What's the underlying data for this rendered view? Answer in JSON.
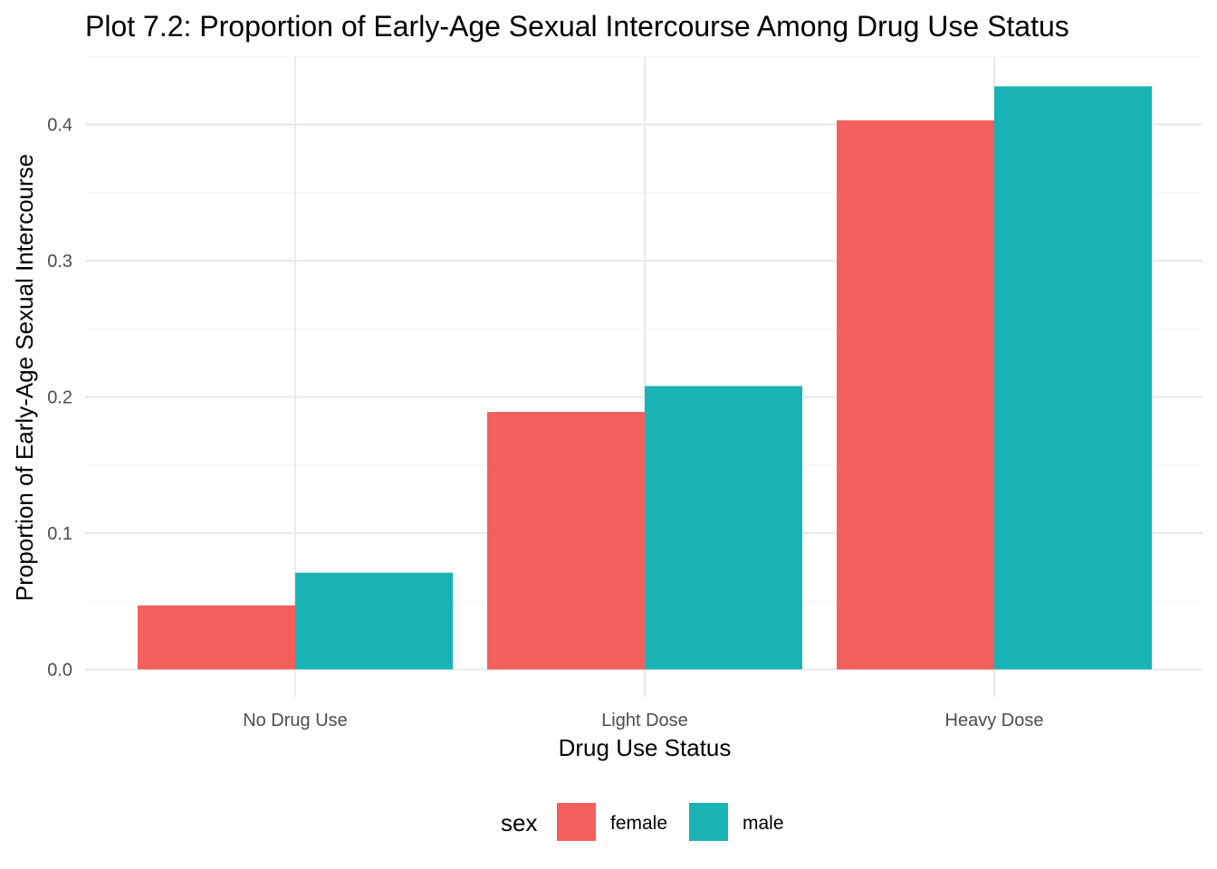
{
  "chart_data": {
    "type": "bar",
    "title": "Plot 7.2: Proportion of Early-Age Sexual Intercourse Among Drug Use Status",
    "xlabel": "Drug Use Status",
    "ylabel": "Proportion of Early-Age Sexual Intercourse",
    "categories": [
      "No Drug Use",
      "Light Dose",
      "Heavy Dose"
    ],
    "series": [
      {
        "name": "female",
        "color": "#F35F5C",
        "values": [
          0.047,
          0.189,
          0.403
        ]
      },
      {
        "name": "male",
        "color": "#19B3B6",
        "values": [
          0.071,
          0.208,
          0.428
        ]
      }
    ],
    "ylim": [
      0,
      0.45
    ],
    "yticks": [
      0.0,
      0.1,
      0.2,
      0.3,
      0.4
    ],
    "ytick_labels": [
      "0.0",
      "0.1",
      "0.2",
      "0.3",
      "0.4"
    ],
    "grid": true,
    "legend": {
      "title": "sex",
      "position": "bottom",
      "entries": [
        "female",
        "male"
      ]
    }
  }
}
